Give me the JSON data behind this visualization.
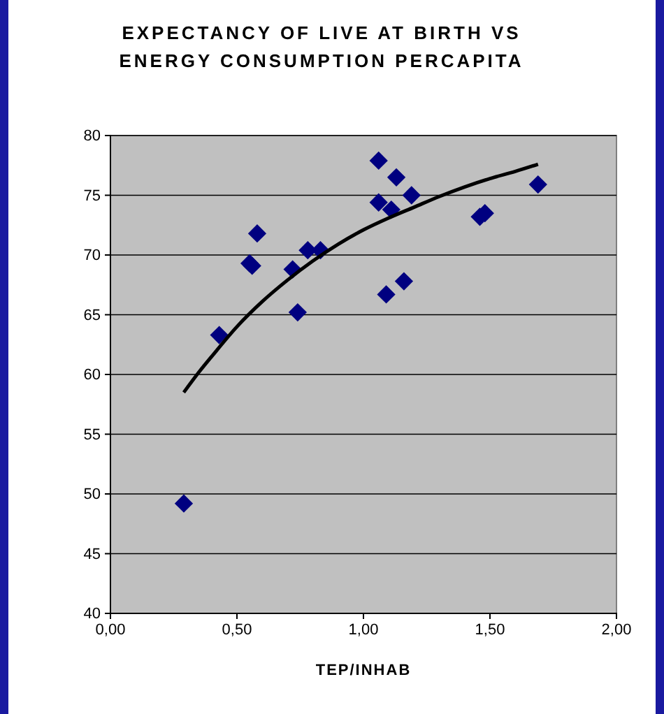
{
  "chart_data": {
    "type": "scatter",
    "title": "EXPECTANCY OF LIVE AT BIRTH VS ENERGY CONSUMPTION PERCAPITA",
    "xlabel": "TEP/INHAB",
    "series": [
      {
        "color": "#000080",
        "marker": "diamond",
        "x": [
          0.29,
          0.43,
          0.55,
          0.56,
          0.58,
          0.72,
          0.74,
          0.78,
          0.83,
          1.06,
          1.06,
          1.13,
          1.11,
          1.09,
          1.16,
          1.19,
          1.46,
          1.48,
          1.69
        ],
        "values": [
          49.2,
          63.3,
          69.3,
          69.1,
          71.8,
          68.8,
          65.2,
          70.4,
          70.4,
          77.9,
          74.4,
          76.5,
          73.8,
          66.7,
          67.8,
          75.0,
          73.2,
          73.5,
          75.9
        ]
      },
      {
        "type": "line",
        "color": "#000000",
        "x": [
          0.29,
          0.35,
          0.4,
          0.5,
          0.6,
          0.7,
          0.8,
          0.9,
          1.0,
          1.1,
          1.2,
          1.3,
          1.4,
          1.5,
          1.6,
          1.69
        ],
        "values": [
          58.5,
          60.2,
          61.5,
          64.0,
          66.1,
          67.9,
          69.5,
          70.9,
          72.1,
          73.1,
          74.0,
          74.9,
          75.7,
          76.4,
          77.0,
          77.6
        ]
      }
    ],
    "xlim": [
      0,
      2
    ],
    "xticks": [
      {
        "value": 0,
        "label": "0,00"
      },
      {
        "value": 0.5,
        "label": "0,50"
      },
      {
        "value": 1,
        "label": "1,00"
      },
      {
        "value": 1.5,
        "label": "1,50"
      },
      {
        "value": 2,
        "label": "2,00"
      }
    ],
    "ylim": [
      40,
      80
    ],
    "yticks": [
      40,
      45,
      50,
      55,
      60,
      65,
      70,
      75,
      80
    ],
    "grid": "y"
  }
}
